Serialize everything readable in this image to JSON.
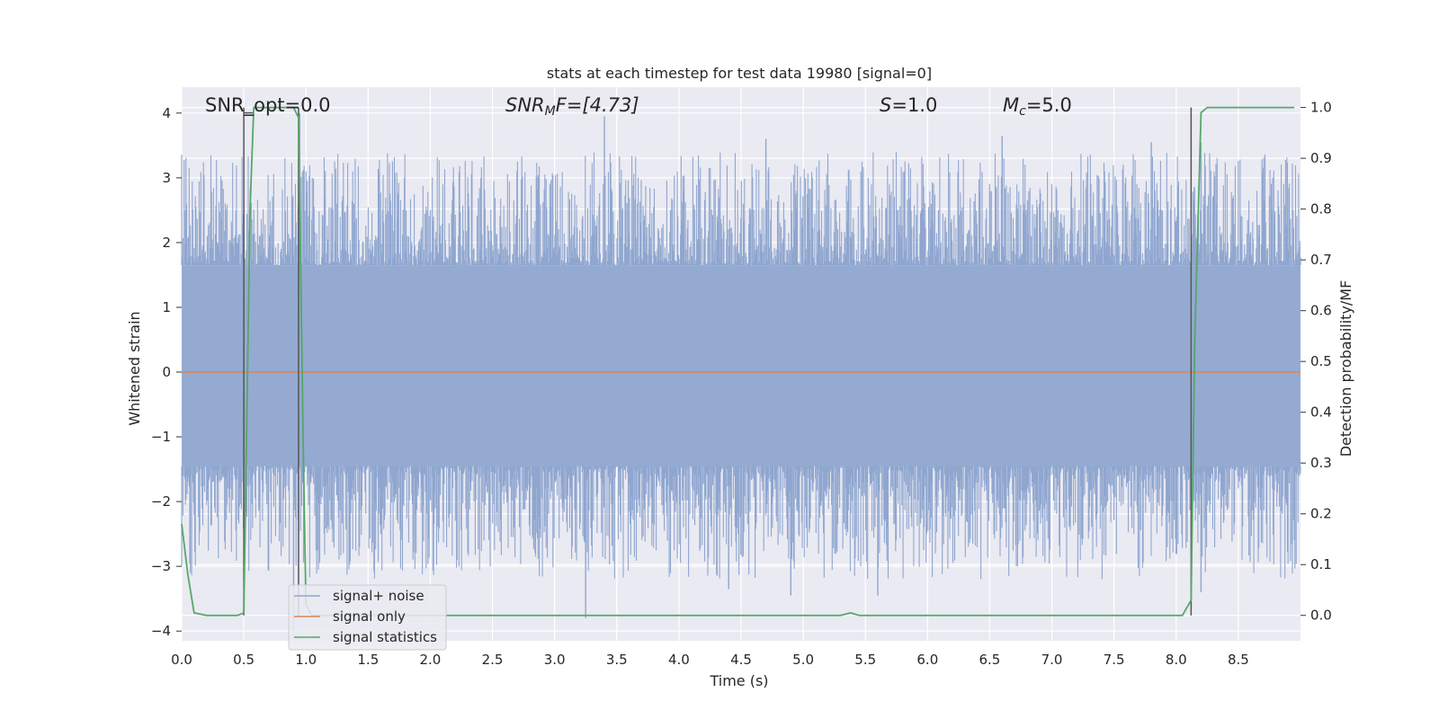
{
  "chart_data": {
    "type": "line",
    "title": "stats at each timestep for test data 19980 [signal=0]",
    "xlabel": "Time (s)",
    "ylabel_left": "Whitened strain",
    "ylabel_right": "Detection probability/MF",
    "xlim": [
      0.0,
      9.0
    ],
    "ylim_left": [
      -4.15,
      4.4
    ],
    "ylim_right": [
      -0.05,
      1.04
    ],
    "x_ticks": [
      "0.0",
      "0.5",
      "1.0",
      "1.5",
      "2.0",
      "2.5",
      "3.0",
      "3.5",
      "4.0",
      "4.5",
      "5.0",
      "5.5",
      "6.0",
      "6.5",
      "7.0",
      "7.5",
      "8.0",
      "8.5"
    ],
    "y_left_ticks": [
      "4",
      "3",
      "2",
      "1",
      "0",
      "−1",
      "−2",
      "−3",
      "−4"
    ],
    "y_right_ticks": [
      "1.0",
      "0.9",
      "0.8",
      "0.7",
      "0.6",
      "0.5",
      "0.4",
      "0.3",
      "0.2",
      "0.1",
      "0.0"
    ],
    "grid": true,
    "annotations": {
      "snr_opt": "SNR_opt=0.0",
      "snr_mf_main": "SNR",
      "snr_mf_sub": "M",
      "snr_mf_rest": "F=[4.73]",
      "s_main": "S",
      "s_rest": "=1.0",
      "mc_main": "M",
      "mc_sub": "c",
      "mc_rest": "=5.0"
    },
    "series": [
      {
        "name": "signal+ noise",
        "axis": "left",
        "color": "#8fa6cf",
        "envelope": {
          "x_start": 0.0,
          "x_end": 9.0,
          "samples": 1800,
          "core_low": -1.45,
          "core_high": 1.65,
          "peak_low_typical": -3.2,
          "peak_high_typical": 3.4,
          "maxima": [
            [
              3.4,
              3.95
            ],
            [
              0.95,
              4.0
            ],
            [
              4.7,
              3.6
            ],
            [
              6.6,
              3.65
            ],
            [
              7.8,
              3.55
            ],
            [
              8.2,
              3.55
            ]
          ],
          "minima": [
            [
              3.25,
              -3.8
            ],
            [
              0.9,
              -4.0
            ],
            [
              4.9,
              -3.45
            ],
            [
              5.6,
              -3.45
            ],
            [
              8.2,
              -3.4
            ],
            [
              4.4,
              -3.35
            ]
          ]
        }
      },
      {
        "name": "signal only",
        "axis": "left",
        "color": "#dd8452",
        "x": [
          0.0,
          9.0
        ],
        "y": [
          0.0,
          0.0
        ]
      },
      {
        "name": "signal statistics",
        "axis": "right",
        "color": "#55a868",
        "x": [
          0.0,
          0.05,
          0.1,
          0.2,
          0.45,
          0.5,
          0.55,
          0.58,
          0.9,
          0.94,
          0.98,
          1.0,
          1.05,
          5.3,
          5.38,
          5.45,
          8.05,
          8.12,
          8.15,
          8.2,
          8.25,
          8.95
        ],
        "y": [
          0.18,
          0.08,
          0.005,
          0.0,
          0.0,
          0.005,
          0.8,
          1.0,
          1.0,
          0.98,
          0.3,
          0.02,
          0.0,
          0.0,
          0.005,
          0.0,
          0.0,
          0.03,
          0.55,
          0.99,
          1.0,
          1.0
        ]
      }
    ],
    "markers": {
      "color": "#555555",
      "vertical_lines_x": [
        0.5,
        0.94,
        8.12
      ],
      "bar_y": 1.0
    },
    "legend": {
      "placement": "lower-left",
      "entries": [
        "signal+ noise",
        "signal only",
        "signal statistics"
      ]
    }
  }
}
